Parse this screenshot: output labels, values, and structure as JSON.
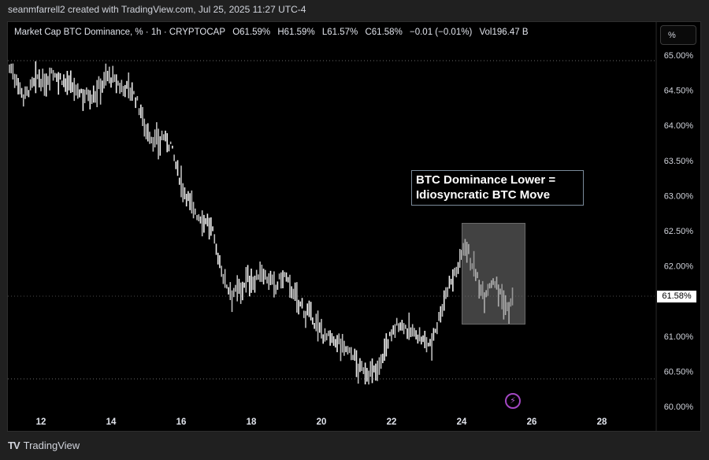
{
  "credit": "seanmfarrell2 created with TradingView.com, Jul 25, 2025 11:27 UTC-4",
  "legend": {
    "symbol": "Market Cap BTC Dominance, % · 1h · CRYPTOCAP",
    "open": "O61.59%",
    "high": "H61.59%",
    "low": "L61.57%",
    "close": "C61.58%",
    "change": "−0.01 (−0.01%)",
    "volume": "Vol196.47 B"
  },
  "unit_button": "%",
  "price_tag": "61.58%",
  "annotation": {
    "line1": "BTC Dominance Lower =",
    "line2": "Idiosyncratic BTC Move"
  },
  "flash_icon": "⚡",
  "brand": {
    "logo": "TV",
    "name": "TradingView"
  },
  "colors": {
    "background": "#000000",
    "bars": "#e6e6e6",
    "annotation_border": "#7b8b9a",
    "highlight": "#5a5a5a",
    "event_icon": "#a347c2",
    "price_tag_bg": "#ffffff"
  },
  "chart_data": {
    "type": "line",
    "subtype": "ohlc-bars",
    "title": "Market Cap BTC Dominance, % · 1h · CRYPTOCAP",
    "xlabel": "",
    "ylabel": "%",
    "x_ticks": [
      "12",
      "14",
      "16",
      "18",
      "20",
      "22",
      "24",
      "26",
      "28"
    ],
    "y_ticks": [
      "65.00%",
      "64.50%",
      "64.00%",
      "63.50%",
      "63.00%",
      "62.50%",
      "62.00%",
      "61.50%",
      "61.00%",
      "60.50%",
      "60.00%"
    ],
    "ylim": [
      60.0,
      65.0
    ],
    "xlim": [
      11.1,
      29.6
    ],
    "grid": false,
    "reference_lines": [
      64.95,
      60.4,
      61.58
    ],
    "last_price": 61.58,
    "series": [
      {
        "name": "BTC Dominance",
        "x": [
          11.1,
          11.3,
          11.5,
          11.7,
          11.9,
          12.1,
          12.3,
          12.5,
          12.7,
          12.9,
          13.1,
          13.3,
          13.5,
          13.7,
          13.9,
          14.1,
          14.3,
          14.5,
          14.7,
          14.9,
          15.1,
          15.3,
          15.5,
          15.7,
          15.9,
          16.1,
          16.3,
          16.5,
          16.7,
          16.9,
          17.1,
          17.3,
          17.5,
          17.7,
          17.9,
          18.1,
          18.3,
          18.5,
          18.7,
          18.9,
          19.1,
          19.3,
          19.5,
          19.7,
          19.9,
          20.1,
          20.3,
          20.5,
          20.7,
          20.9,
          21.1,
          21.3,
          21.5,
          21.7,
          21.9,
          22.1,
          22.3,
          22.5,
          22.7,
          22.9,
          23.1,
          23.3,
          23.5,
          23.7,
          23.9,
          24.1,
          24.3,
          24.5,
          24.7,
          24.9,
          25.1,
          25.3,
          25.5
        ],
        "values": [
          64.85,
          64.7,
          64.45,
          64.55,
          64.7,
          64.6,
          64.8,
          64.7,
          64.65,
          64.55,
          64.5,
          64.48,
          64.45,
          64.6,
          64.75,
          64.65,
          64.55,
          64.6,
          64.4,
          64.15,
          63.85,
          63.8,
          63.85,
          63.75,
          63.35,
          63.1,
          62.9,
          62.7,
          62.7,
          62.5,
          62.05,
          61.75,
          61.65,
          61.7,
          61.85,
          61.8,
          61.95,
          61.82,
          61.72,
          61.9,
          61.75,
          61.55,
          61.4,
          61.3,
          61.15,
          61.05,
          60.95,
          60.95,
          60.85,
          60.75,
          60.55,
          60.52,
          60.5,
          60.7,
          60.95,
          61.15,
          61.2,
          61.1,
          61.05,
          60.95,
          60.9,
          61.2,
          61.55,
          61.85,
          62.0,
          62.4,
          62.05,
          61.75,
          61.65,
          61.85,
          61.65,
          61.4,
          61.58
        ]
      }
    ],
    "annotations": [
      {
        "text": "BTC Dominance Lower = Idiosyncratic BTC Move",
        "type": "text-box"
      },
      {
        "type": "highlight-rect",
        "x_range": [
          24.0,
          25.8
        ],
        "y_range": [
          61.2,
          62.65
        ]
      }
    ]
  }
}
